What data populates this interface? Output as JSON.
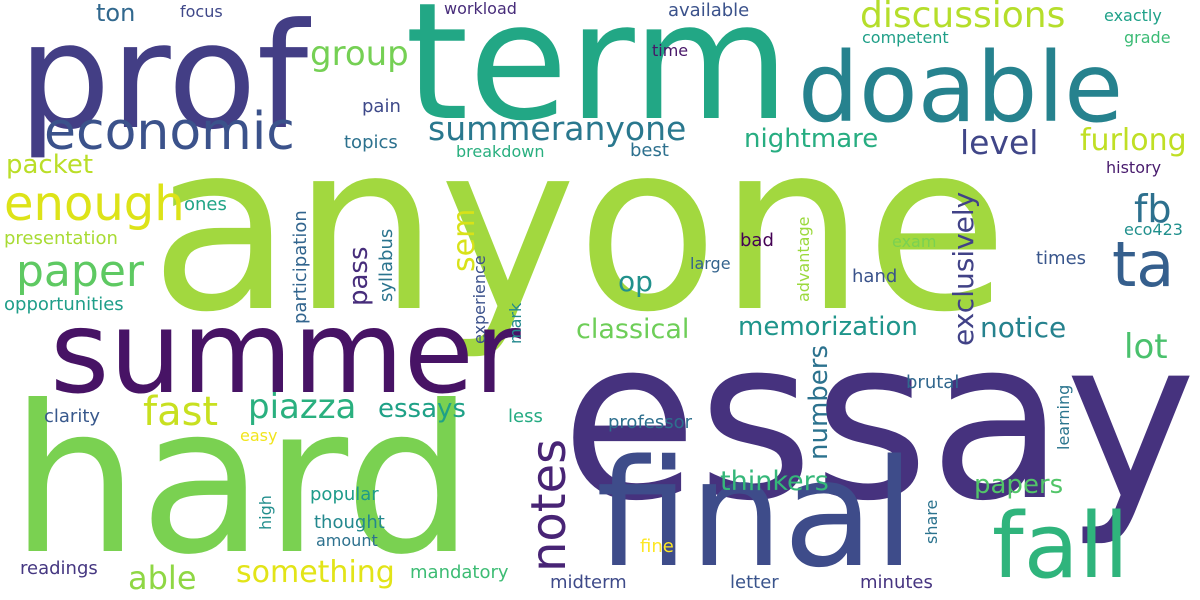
{
  "words": [
    {
      "text": "anyone",
      "color": "#a2d83f"
    },
    {
      "text": "essay",
      "color": "#46327e"
    },
    {
      "text": "hard",
      "color": "#7ad151"
    },
    {
      "text": "term",
      "color": "#22a785"
    },
    {
      "text": "prof",
      "color": "#433e85"
    },
    {
      "text": "summer",
      "color": "#471365"
    },
    {
      "text": "final",
      "color": "#3e4c8a"
    },
    {
      "text": "doable",
      "color": "#26828e"
    },
    {
      "text": "fall",
      "color": "#2fb47c"
    },
    {
      "text": "economic",
      "color": "#3b528b"
    },
    {
      "text": "enough",
      "color": "#dde318"
    },
    {
      "text": "paper",
      "color": "#5ec962"
    },
    {
      "text": "notes",
      "color": "#482475"
    },
    {
      "text": "fast",
      "color": "#c8e020"
    },
    {
      "text": "ta",
      "color": "#355f8d"
    },
    {
      "text": "summeranyone",
      "color": "#2a788e"
    },
    {
      "text": "discussions",
      "color": "#b5de2b"
    },
    {
      "text": "group",
      "color": "#75d054"
    },
    {
      "text": "piazza",
      "color": "#2ab07f"
    },
    {
      "text": "essays",
      "color": "#1fa187"
    },
    {
      "text": "something",
      "color": "#e2e418"
    },
    {
      "text": "able",
      "color": "#8fd744"
    },
    {
      "text": "fb",
      "color": "#2d708e"
    },
    {
      "text": "lot",
      "color": "#4ac16d"
    },
    {
      "text": "nightmare",
      "color": "#27ad81"
    },
    {
      "text": "level",
      "color": "#404688"
    },
    {
      "text": "furlong",
      "color": "#c0df25"
    },
    {
      "text": "memorization",
      "color": "#1f958b"
    },
    {
      "text": "notice",
      "color": "#26828e"
    },
    {
      "text": "classical",
      "color": "#6ece58"
    },
    {
      "text": "thinkers",
      "color": "#35b779"
    },
    {
      "text": "papers",
      "color": "#52c569"
    },
    {
      "text": "packet",
      "color": "#bade28"
    },
    {
      "text": "sem",
      "color": "#d8e219"
    },
    {
      "text": "exclusively",
      "color": "#414287"
    },
    {
      "text": "numbers",
      "color": "#2c728e"
    },
    {
      "text": "pass",
      "color": "#472d7b"
    },
    {
      "text": "op",
      "color": "#21918c"
    },
    {
      "text": "ton",
      "color": "#31688e"
    },
    {
      "text": "presentation",
      "color": "#a8db34"
    },
    {
      "text": "opportunities",
      "color": "#1f9e89"
    },
    {
      "text": "participation",
      "color": "#32658e"
    },
    {
      "text": "syllabus",
      "color": "#2b748e"
    },
    {
      "text": "clarity",
      "color": "#38588c"
    },
    {
      "text": "readings",
      "color": "#453781"
    },
    {
      "text": "mandatory",
      "color": "#3dbc74"
    },
    {
      "text": "midterm",
      "color": "#3e4a89"
    },
    {
      "text": "letter",
      "color": "#3a548c"
    },
    {
      "text": "minutes",
      "color": "#463480"
    },
    {
      "text": "brutal",
      "color": "#31678e"
    },
    {
      "text": "professor",
      "color": "#2e6f8e"
    },
    {
      "text": "thought",
      "color": "#23888e"
    },
    {
      "text": "amount",
      "color": "#2d718e"
    },
    {
      "text": "popular",
      "color": "#1e9b8a"
    },
    {
      "text": "fine",
      "color": "#fde725"
    },
    {
      "text": "less",
      "color": "#25ab82"
    },
    {
      "text": "easy",
      "color": "#f1e51d"
    },
    {
      "text": "high",
      "color": "#218e8d"
    },
    {
      "text": "share",
      "color": "#2c738e"
    },
    {
      "text": "learning",
      "color": "#2b758e"
    },
    {
      "text": "bad",
      "color": "#440154"
    },
    {
      "text": "large",
      "color": "#33638d"
    },
    {
      "text": "exam",
      "color": "#7ad151"
    },
    {
      "text": "hand",
      "color": "#3a538b"
    },
    {
      "text": "times",
      "color": "#39568c"
    },
    {
      "text": "eco423",
      "color": "#21908d"
    },
    {
      "text": "history",
      "color": "#481b6d"
    },
    {
      "text": "advantage",
      "color": "#9bd93c"
    },
    {
      "text": "mark",
      "color": "#23898e"
    },
    {
      "text": "experience",
      "color": "#3b518b"
    },
    {
      "text": "ones",
      "color": "#20a486"
    },
    {
      "text": "breakdown",
      "color": "#29af7f"
    },
    {
      "text": "best",
      "color": "#2d708e"
    },
    {
      "text": "topics",
      "color": "#2c718e"
    },
    {
      "text": "pain",
      "color": "#3e4989"
    },
    {
      "text": "time",
      "color": "#481668"
    },
    {
      "text": "competent",
      "color": "#1f9f88"
    },
    {
      "text": "grade",
      "color": "#3bbb75"
    },
    {
      "text": "exactly",
      "color": "#1fa188"
    },
    {
      "text": "available",
      "color": "#3b528b"
    },
    {
      "text": "workload",
      "color": "#472c7a"
    },
    {
      "text": "focus",
      "color": "#3f4889"
    }
  ]
}
